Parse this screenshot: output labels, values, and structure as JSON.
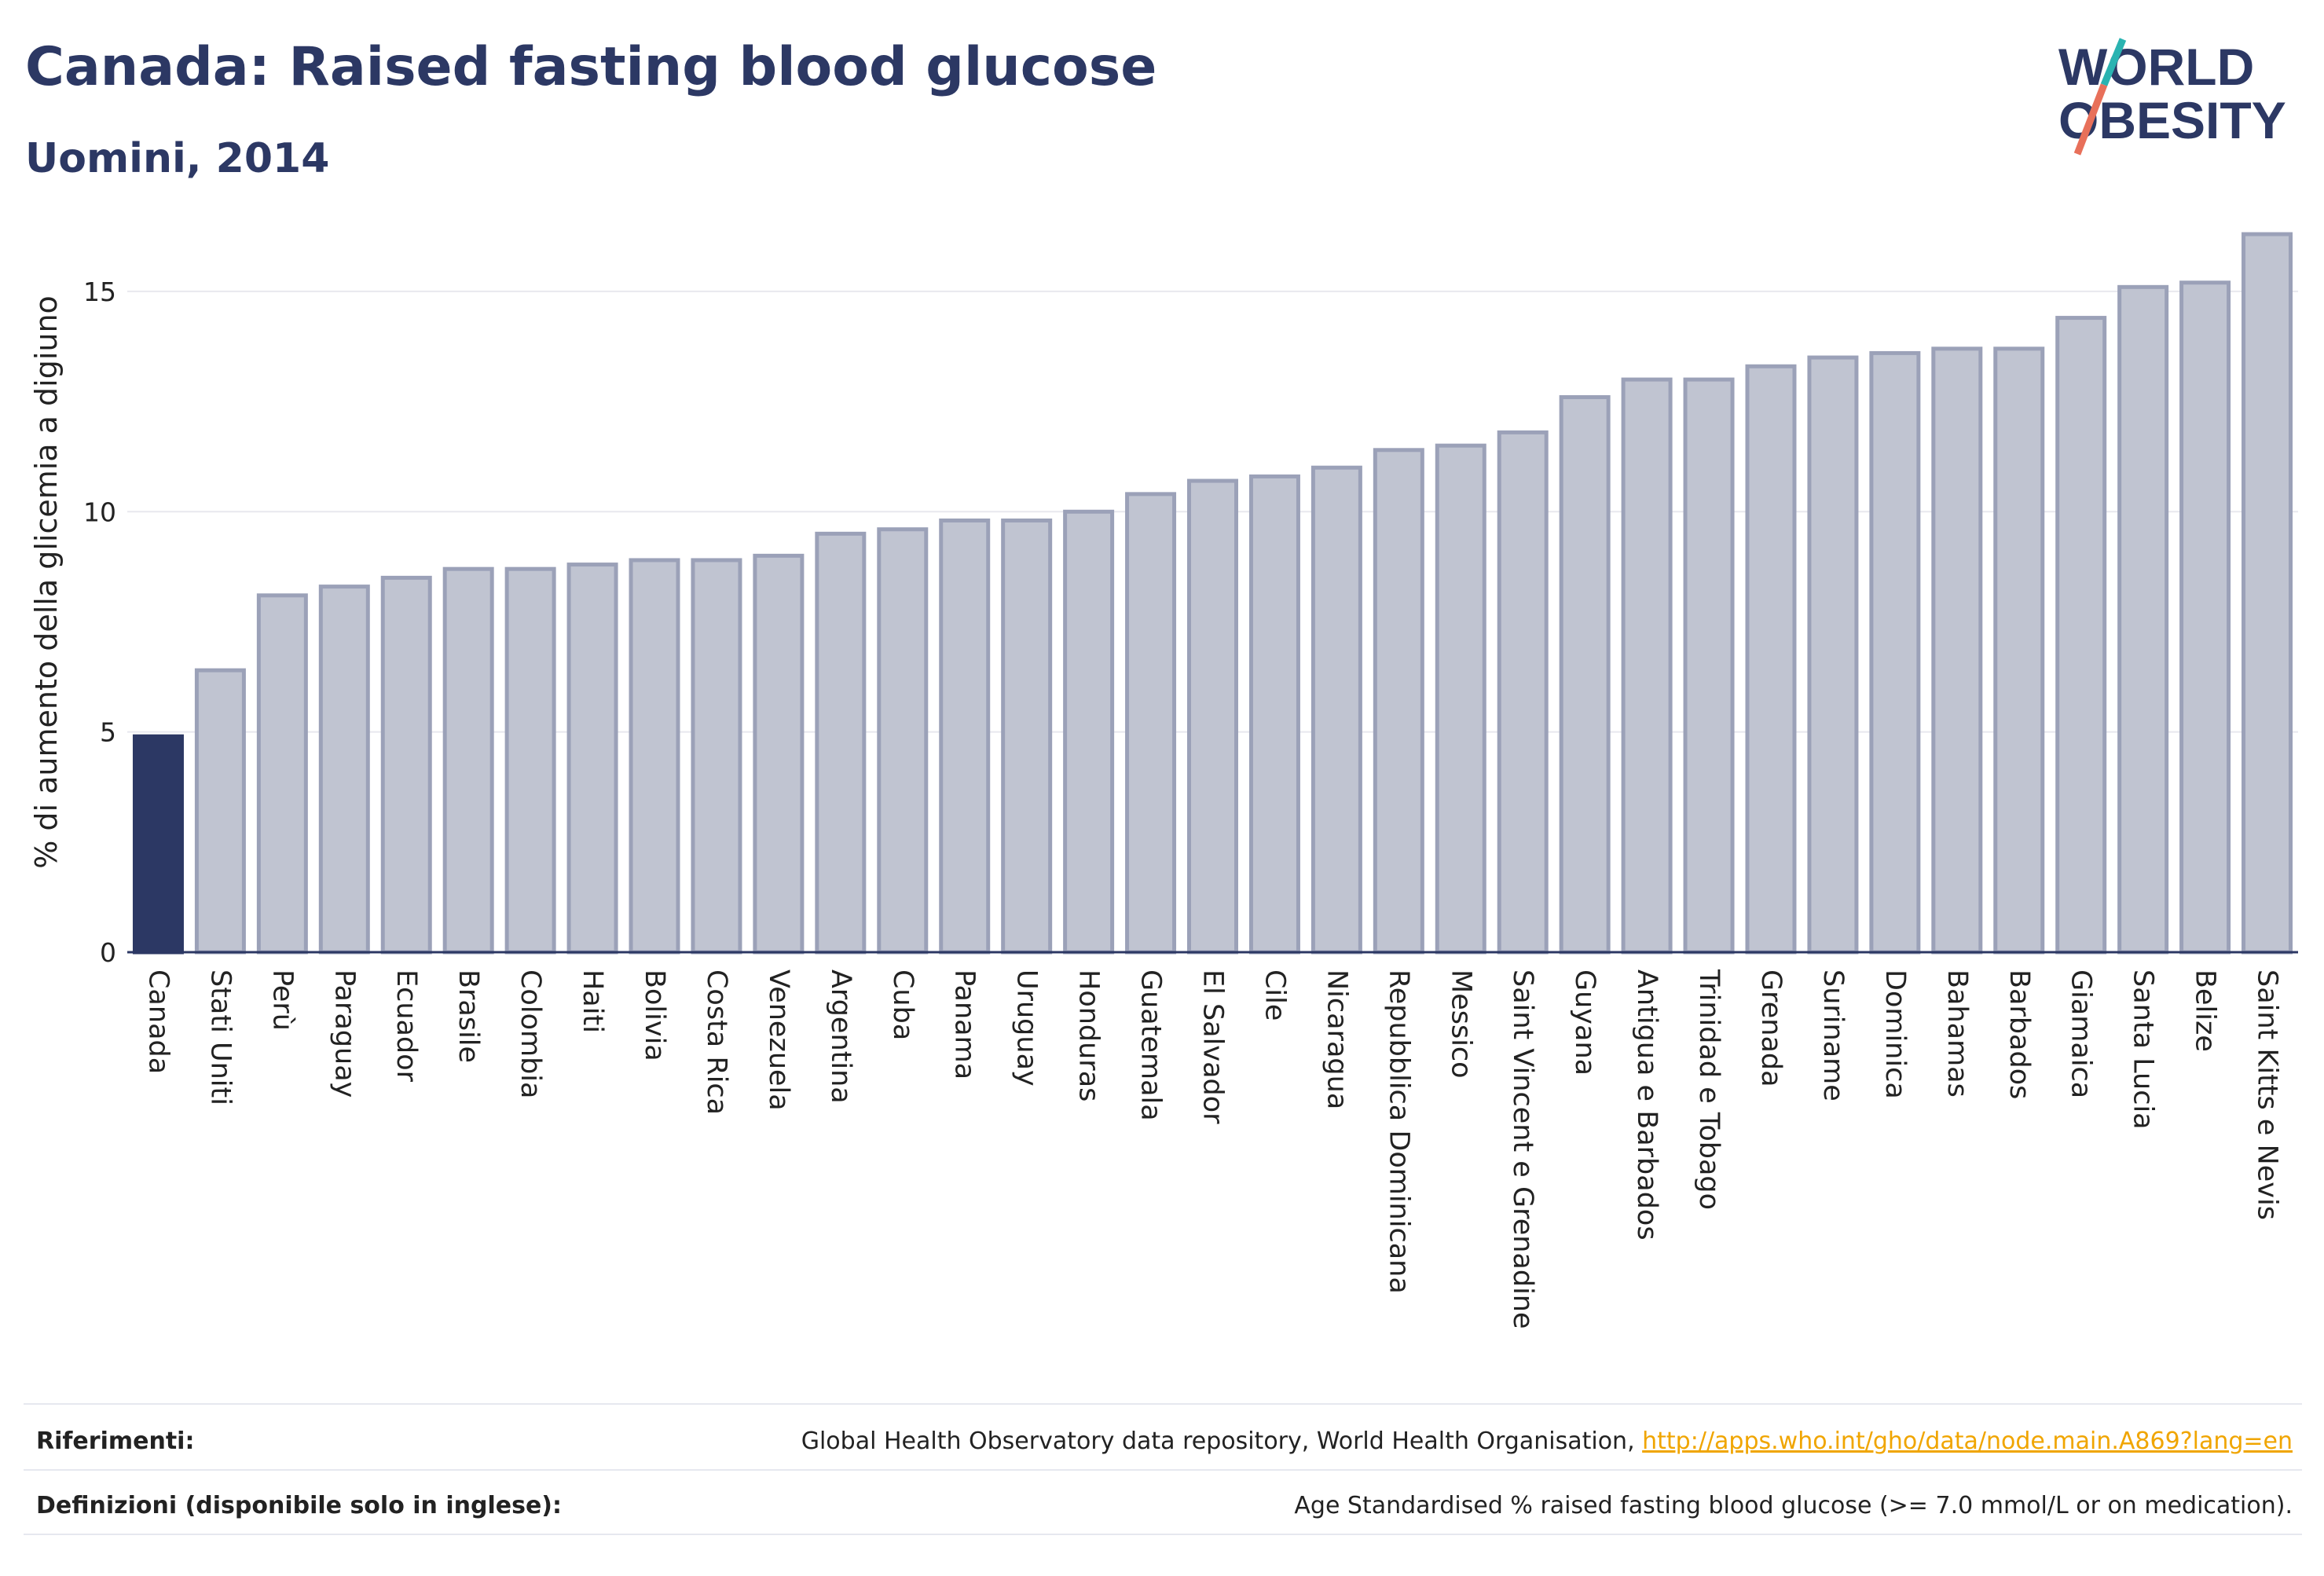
{
  "header": {
    "title": "Canada: Raised fasting blood glucose",
    "subtitle": "Uomini, 2014"
  },
  "logo": {
    "line1": "WORLD",
    "line2": "OBESITY",
    "colors": {
      "text": "#2c3864",
      "slash_top": "#2ab3b1",
      "slash_bottom": "#e8705a"
    }
  },
  "colors": {
    "highlight_bar": "#2c3864",
    "other_bar_fill": "#c0c4d1",
    "other_bar_stroke": "#9ba1b8",
    "grid": "#e8e8ee",
    "axis": "#2c3864"
  },
  "chart_data": {
    "type": "bar",
    "title": "",
    "xlabel": "",
    "ylabel": "% di aumento della glicemia a digiuno",
    "ylim": [
      0,
      16.8
    ],
    "yticks": [
      0,
      5,
      10,
      15
    ],
    "grid": true,
    "highlight": "Canada",
    "categories": [
      "Canada",
      "Stati Uniti",
      "Perù",
      "Paraguay",
      "Ecuador",
      "Brasile",
      "Colombia",
      "Haiti",
      "Bolivia",
      "Costa Rica",
      "Venezuela",
      "Argentina",
      "Cuba",
      "Panama",
      "Uruguay",
      "Honduras",
      "Guatemala",
      "El Salvador",
      "Cile",
      "Nicaragua",
      "Repubblica Dominicana",
      "Messico",
      "Saint Vincent e Grenadine",
      "Guyana",
      "Antigua e Barbados",
      "Trinidad e Tobago",
      "Grenada",
      "Suriname",
      "Dominica",
      "Bahamas",
      "Barbados",
      "Giamaica",
      "Santa Lucia",
      "Belize",
      "Saint Kitts e Nevis"
    ],
    "values": [
      4.9,
      6.4,
      8.1,
      8.3,
      8.5,
      8.7,
      8.7,
      8.8,
      8.9,
      8.9,
      9.0,
      9.5,
      9.6,
      9.8,
      9.8,
      10.0,
      10.4,
      10.7,
      10.8,
      11.0,
      11.4,
      11.5,
      11.8,
      12.6,
      13.0,
      13.0,
      13.3,
      13.5,
      13.6,
      13.7,
      13.7,
      14.4,
      15.1,
      15.2,
      16.3
    ]
  },
  "footer": {
    "references_label": "Riferimenti:",
    "references_text": "Global Health Observatory data repository, World Health Organisation, ",
    "references_link": "http://apps.who.int/gho/data/node.main.A869?lang=en",
    "definitions_label": "Definizioni (disponibile solo in inglese):",
    "definitions_text": "Age Standardised % raised fasting blood glucose (>= 7.0 mmol/L or on medication)."
  }
}
